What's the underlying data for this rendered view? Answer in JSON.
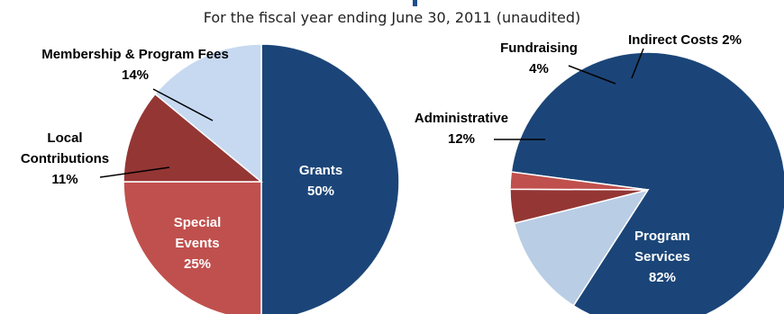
{
  "subtitle": "For the fiscal year ending June 30, 2011 (unaudited)",
  "chart_data": [
    {
      "type": "pie",
      "name": "revenue",
      "slices": [
        {
          "label": [
            "Grants",
            "50%"
          ],
          "value": 50,
          "color": "#1b4578"
        },
        {
          "label": [
            "Special",
            "Events",
            "25%"
          ],
          "value": 25,
          "color": "#c0504d"
        },
        {
          "label": [
            "Local",
            "Contributions",
            "11%"
          ],
          "value": 11,
          "color": "#943634"
        },
        {
          "label": [
            "Membership & Program Fees",
            "14%"
          ],
          "value": 14,
          "color": "#c6d9f1"
        }
      ]
    },
    {
      "type": "pie",
      "name": "expenses",
      "slices": [
        {
          "label": [
            "Program",
            "Services",
            "82%"
          ],
          "value": 82,
          "color": "#1b4578"
        },
        {
          "label": [
            "Administrative",
            "12%"
          ],
          "value": 12,
          "color": "#b9cde5"
        },
        {
          "label": [
            "Fundraising",
            "4%"
          ],
          "value": 4,
          "color": "#943634"
        },
        {
          "label": [
            "Indirect Costs 2%"
          ],
          "value": 2,
          "color": "#c0504d"
        }
      ]
    }
  ]
}
